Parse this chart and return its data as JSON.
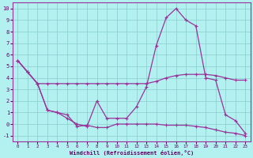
{
  "xlabel": "Windchill (Refroidissement éolien,°C)",
  "xlim": [
    -0.5,
    23.5
  ],
  "ylim": [
    -1.5,
    10.5
  ],
  "yticks": [
    -1,
    0,
    1,
    2,
    3,
    4,
    5,
    6,
    7,
    8,
    9,
    10
  ],
  "xticks": [
    0,
    1,
    2,
    3,
    4,
    5,
    6,
    7,
    8,
    9,
    10,
    11,
    12,
    13,
    14,
    15,
    16,
    17,
    18,
    19,
    20,
    21,
    22,
    23
  ],
  "background_color": "#b3f0f0",
  "grid_color": "#88cccc",
  "line_color": "#993399",
  "line1_x": [
    0,
    1,
    2,
    3,
    4,
    5,
    6,
    7,
    8,
    9,
    10,
    11,
    12,
    13,
    14,
    15,
    16,
    17,
    18,
    19,
    20,
    21,
    22,
    23
  ],
  "line1_y": [
    5.5,
    4.5,
    3.5,
    3.5,
    3.5,
    3.5,
    3.5,
    3.5,
    3.5,
    3.5,
    3.5,
    3.5,
    3.5,
    3.5,
    3.7,
    4.0,
    4.2,
    4.3,
    4.3,
    4.3,
    4.2,
    4.0,
    3.8,
    3.8
  ],
  "line2_x": [
    0,
    1,
    2,
    3,
    4,
    5,
    6,
    7,
    8,
    9,
    10,
    11,
    12,
    13,
    14,
    15,
    16,
    17,
    18,
    19,
    20,
    21,
    22,
    23
  ],
  "line2_y": [
    5.5,
    4.5,
    3.5,
    1.2,
    1.0,
    0.5,
    0.0,
    -0.2,
    2.0,
    0.5,
    0.5,
    0.5,
    1.5,
    3.2,
    6.8,
    9.2,
    10.0,
    9.0,
    8.5,
    4.0,
    3.8,
    0.8,
    0.3,
    -0.8
  ],
  "line3_x": [
    0,
    1,
    2,
    3,
    4,
    5,
    6,
    7,
    8,
    9,
    10,
    11,
    12,
    13,
    14,
    15,
    16,
    17,
    18,
    19,
    20,
    21,
    22,
    23
  ],
  "line3_y": [
    5.5,
    4.5,
    3.5,
    1.2,
    1.0,
    0.8,
    -0.2,
    -0.1,
    -0.3,
    -0.3,
    0.0,
    0.0,
    0.0,
    0.0,
    0.0,
    -0.1,
    -0.1,
    -0.1,
    -0.2,
    -0.3,
    -0.5,
    -0.7,
    -0.8,
    -1.0
  ]
}
